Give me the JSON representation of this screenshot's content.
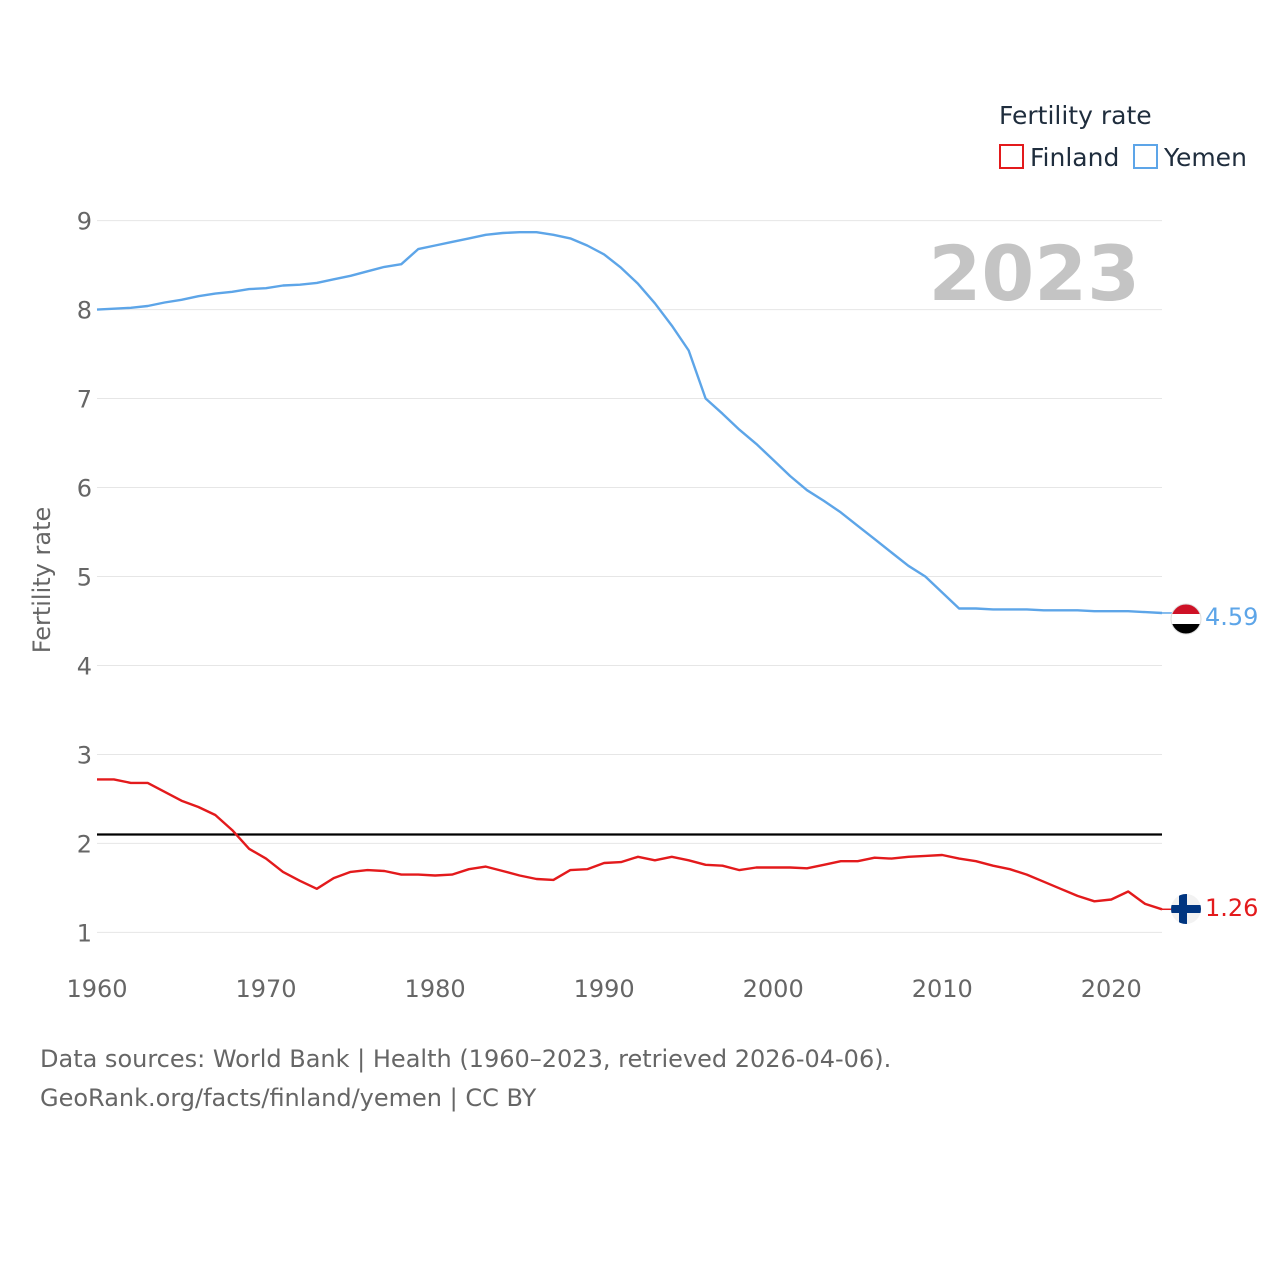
{
  "chart_data": {
    "type": "line",
    "title": "",
    "xlabel": "",
    "ylabel": "Fertility rate",
    "xlim": [
      1960,
      2023
    ],
    "ylim": [
      0.6,
      9.4
    ],
    "y_ticks": [
      1,
      2,
      3,
      4,
      5,
      6,
      7,
      8,
      9
    ],
    "x_ticks": [
      1960,
      1970,
      1980,
      1990,
      2000,
      2010,
      2020
    ],
    "year_label": "2023",
    "legend": {
      "title": "Fertility rate",
      "placement": "top-right"
    },
    "reference_line": {
      "value": 2.1,
      "color": "#000000"
    },
    "series": [
      {
        "name": "Finland",
        "color": "#e31a1c",
        "end_label": "1.26",
        "x": [
          1960,
          1961,
          1962,
          1963,
          1964,
          1965,
          1966,
          1967,
          1968,
          1969,
          1970,
          1971,
          1972,
          1973,
          1974,
          1975,
          1976,
          1977,
          1978,
          1979,
          1980,
          1981,
          1982,
          1983,
          1984,
          1985,
          1986,
          1987,
          1988,
          1989,
          1990,
          1991,
          1992,
          1993,
          1994,
          1995,
          1996,
          1997,
          1998,
          1999,
          2000,
          2001,
          2002,
          2003,
          2004,
          2005,
          2006,
          2007,
          2008,
          2009,
          2010,
          2011,
          2012,
          2013,
          2014,
          2015,
          2016,
          2017,
          2018,
          2019,
          2020,
          2021,
          2022,
          2023
        ],
        "values": [
          2.72,
          2.72,
          2.68,
          2.68,
          2.58,
          2.48,
          2.41,
          2.32,
          2.15,
          1.94,
          1.83,
          1.68,
          1.58,
          1.49,
          1.61,
          1.68,
          1.7,
          1.69,
          1.65,
          1.65,
          1.64,
          1.65,
          1.71,
          1.74,
          1.69,
          1.64,
          1.6,
          1.59,
          1.7,
          1.71,
          1.78,
          1.79,
          1.85,
          1.81,
          1.85,
          1.81,
          1.76,
          1.75,
          1.7,
          1.73,
          1.73,
          1.73,
          1.72,
          1.76,
          1.8,
          1.8,
          1.84,
          1.83,
          1.85,
          1.86,
          1.87,
          1.83,
          1.8,
          1.75,
          1.71,
          1.65,
          1.57,
          1.49,
          1.41,
          1.35,
          1.37,
          1.46,
          1.32,
          1.26
        ]
      },
      {
        "name": "Yemen",
        "color": "#5da5e8",
        "end_label": "4.59",
        "x": [
          1960,
          1961,
          1962,
          1963,
          1964,
          1965,
          1966,
          1967,
          1968,
          1969,
          1970,
          1971,
          1972,
          1973,
          1974,
          1975,
          1976,
          1977,
          1978,
          1979,
          1980,
          1981,
          1982,
          1983,
          1984,
          1985,
          1986,
          1987,
          1988,
          1989,
          1990,
          1991,
          1992,
          1993,
          1994,
          1995,
          1996,
          1997,
          1998,
          1999,
          2000,
          2001,
          2002,
          2003,
          2004,
          2005,
          2006,
          2007,
          2008,
          2009,
          2010,
          2011,
          2012,
          2013,
          2014,
          2015,
          2016,
          2017,
          2018,
          2019,
          2020,
          2021,
          2022,
          2023
        ],
        "values": [
          8.0,
          8.01,
          8.02,
          8.04,
          8.08,
          8.11,
          8.15,
          8.18,
          8.2,
          8.23,
          8.24,
          8.27,
          8.28,
          8.3,
          8.34,
          8.38,
          8.43,
          8.48,
          8.51,
          8.68,
          8.72,
          8.76,
          8.8,
          8.84,
          8.86,
          8.87,
          8.87,
          8.84,
          8.8,
          8.72,
          8.62,
          8.47,
          8.29,
          8.07,
          7.82,
          7.54,
          7.0,
          6.83,
          6.65,
          6.49,
          6.31,
          6.13,
          5.97,
          5.85,
          5.72,
          5.57,
          5.42,
          5.27,
          5.12,
          5.0,
          4.82,
          4.64,
          4.64,
          4.63,
          4.63,
          4.63,
          4.62,
          4.62,
          4.62,
          4.61,
          4.61,
          4.61,
          4.6,
          4.59
        ]
      }
    ]
  },
  "source": {
    "line1": "Data sources: World Bank | Health (1960–2023, retrieved 2026-04-06).",
    "line2": "GeoRank.org/facts/finland/yemen | CC BY"
  },
  "icons": {
    "finland": "finland-flag-icon",
    "yemen": "yemen-flag-icon"
  }
}
